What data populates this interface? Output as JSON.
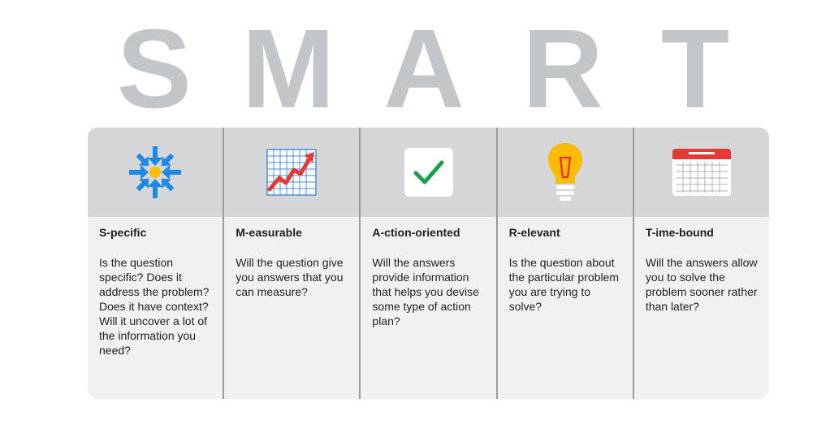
{
  "title_letters": [
    "S",
    "M",
    "A",
    "R",
    "T"
  ],
  "columns": [
    {
      "icon": "focus-arrows-icon",
      "heading": "S-pecific",
      "body": "Is the question specific? Does it address the problem? Does it have context? Will it uncover a lot of the information you need?"
    },
    {
      "icon": "growth-chart-icon",
      "heading": "M-easurable",
      "body": "Will the question give you answers that you can measure?"
    },
    {
      "icon": "checkmark-icon",
      "heading": "A-ction-oriented",
      "body": "Will the answers provide information that helps you devise some type of action plan?"
    },
    {
      "icon": "lightbulb-icon",
      "heading": "R-elevant",
      "body": "Is the question about the particular problem you are trying to solve?"
    },
    {
      "icon": "calendar-icon",
      "heading": "T-ime-bound",
      "body": "Will the answers allow you to solve the problem sooner rather than later?"
    }
  ],
  "colors": {
    "letters": "#c3c6c8",
    "icon_band": "#d4d6d8",
    "card": "#f1f1f1",
    "blue": "#1e88e5",
    "red": "#e53935",
    "green": "#1e9e4a",
    "yellow": "#fbbc04"
  }
}
